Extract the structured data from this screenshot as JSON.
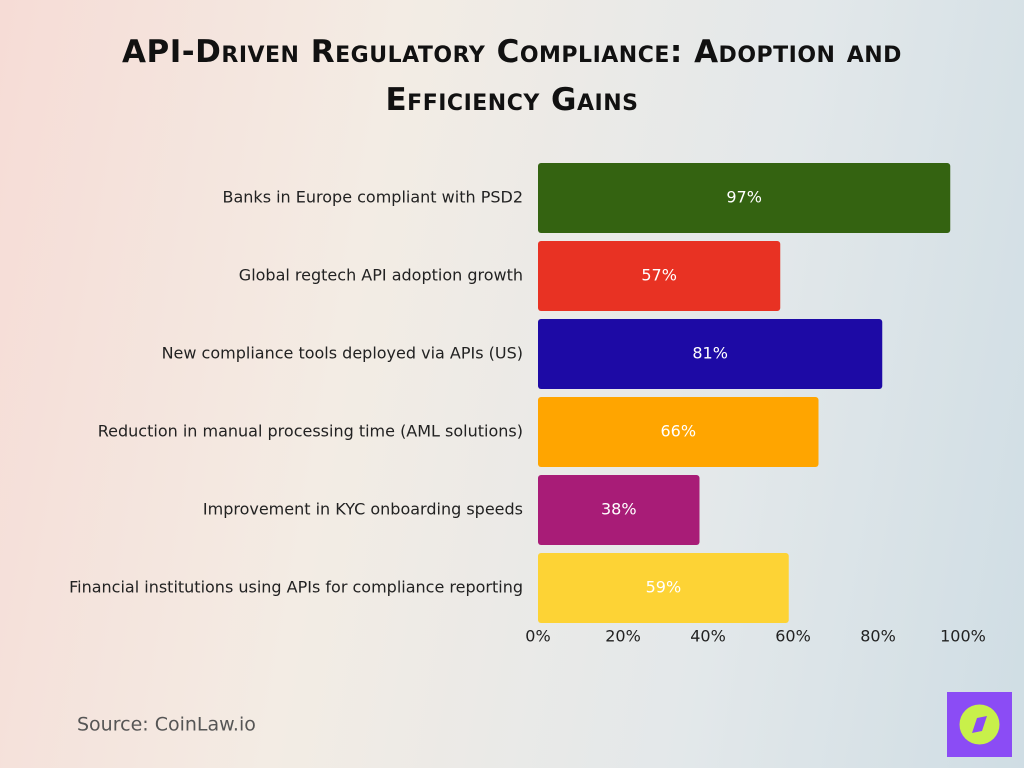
{
  "chart_data": {
    "type": "bar",
    "orientation": "horizontal",
    "title": "API-Driven Regulatory Compliance: Adoption and Efficiency Gains",
    "categories": [
      "Banks in Europe compliant with PSD2",
      "Global regtech API adoption growth",
      "New compliance tools deployed via APIs (US)",
      "Reduction in manual processing time (AML solutions)",
      "Improvement in KYC onboarding speeds",
      "Financial institutions using APIs for compliance reporting"
    ],
    "values": [
      97,
      57,
      81,
      66,
      38,
      59
    ],
    "value_labels": [
      "97%",
      "57%",
      "81%",
      "66%",
      "38%",
      "59%"
    ],
    "colors": [
      "#346311",
      "#e83223",
      "#1d0aa5",
      "#ffa500",
      "#a81c77",
      "#fdd335"
    ],
    "xlim": [
      0,
      100
    ],
    "xticks": [
      {
        "value": 0,
        "label": "0%"
      },
      {
        "value": 20,
        "label": "20%"
      },
      {
        "value": 40,
        "label": "40%"
      },
      {
        "value": 60,
        "label": "60%"
      },
      {
        "value": 80,
        "label": "80%"
      },
      {
        "value": 100,
        "label": "100%"
      }
    ],
    "grid": false,
    "source": "Source: CoinLaw.io"
  }
}
